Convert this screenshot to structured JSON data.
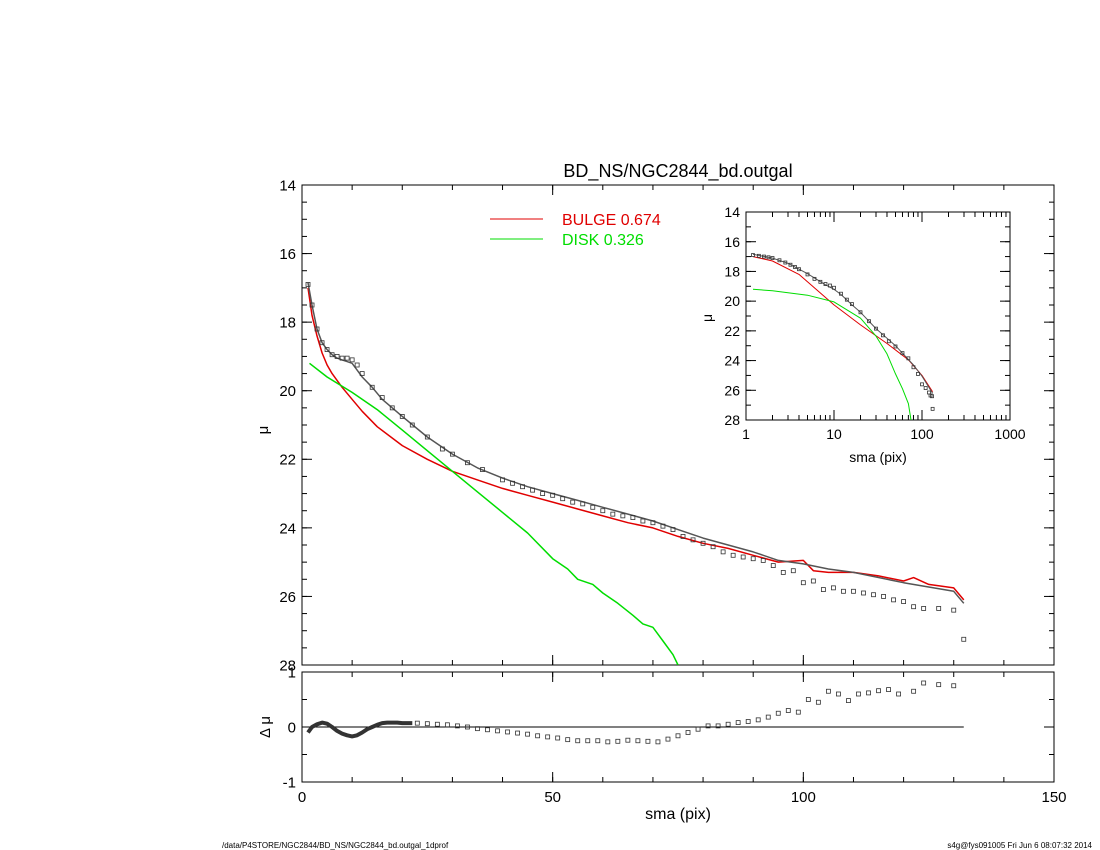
{
  "footer": {
    "left": "/data/P4STORE/NGC2844/BD_NS/NGC2844_bd.outgal_1dprof",
    "right": "s4g@fys091005  Fri Jun  6 08:07:32 2014"
  },
  "colors": {
    "bulge": "#e00000",
    "disk": "#00dd00",
    "model": "#555555",
    "data": "#333333",
    "axis": "#000000"
  },
  "chart_data": [
    {
      "type": "line",
      "panel": "main",
      "title": "BD_NS/NGC2844_bd.outgal",
      "xlabel": "",
      "ylabel": "μ",
      "xlim": [
        0,
        150
      ],
      "ylim": [
        28,
        14
      ],
      "x_ticks": [
        0,
        50,
        100,
        150
      ],
      "y_ticks": [
        14,
        16,
        18,
        20,
        22,
        24,
        26,
        28
      ],
      "y_tick_labels": [
        "14",
        "16",
        "18",
        "20",
        "22",
        "24",
        "26",
        "28"
      ],
      "legend_position": "top-center",
      "legend": [
        {
          "label": "BULGE",
          "value": "0.674",
          "color": "#e00000"
        },
        {
          "label": "DISK",
          "value": "0.326",
          "color": "#00dd00"
        }
      ],
      "series": [
        {
          "name": "BULGE",
          "color": "#e00000",
          "x": [
            1.2,
            2,
            3,
            4,
            5,
            6,
            8,
            10,
            12,
            15,
            20,
            25,
            30,
            35,
            40,
            45,
            50,
            55,
            60,
            65,
            70,
            75,
            80,
            85,
            90,
            95,
            100,
            102,
            105,
            110,
            115,
            120,
            122,
            125,
            130,
            132
          ],
          "y": [
            17.0,
            17.8,
            18.4,
            18.9,
            19.25,
            19.5,
            19.9,
            20.25,
            20.6,
            21.05,
            21.6,
            22.0,
            22.35,
            22.6,
            22.85,
            23.05,
            23.25,
            23.45,
            23.65,
            23.85,
            24.0,
            24.25,
            24.45,
            24.6,
            24.8,
            25.0,
            24.95,
            25.25,
            25.3,
            25.3,
            25.4,
            25.55,
            25.45,
            25.65,
            25.75,
            26.1
          ]
        },
        {
          "name": "DISK",
          "color": "#00dd00",
          "x": [
            1.5,
            5,
            10,
            15,
            20,
            25,
            30,
            35,
            40,
            45,
            50,
            53,
            55,
            58,
            60,
            63,
            66,
            68,
            70,
            72,
            74,
            75
          ],
          "y": [
            19.2,
            19.6,
            20.05,
            20.55,
            21.15,
            21.75,
            22.35,
            22.95,
            23.55,
            24.15,
            24.9,
            25.2,
            25.5,
            25.65,
            25.9,
            26.2,
            26.55,
            26.8,
            26.9,
            27.3,
            27.7,
            28.0
          ]
        },
        {
          "name": "",
          "color": "#555555",
          "x": [
            1.2,
            2,
            3,
            4,
            5,
            6,
            7,
            8,
            9,
            10,
            11,
            12,
            14,
            16,
            20,
            25,
            30,
            35,
            40,
            45,
            50,
            55,
            60,
            65,
            70,
            75,
            80,
            85,
            90,
            95,
            100,
            105,
            110,
            120,
            130,
            132
          ],
          "y": [
            16.85,
            17.5,
            18.2,
            18.6,
            18.8,
            18.95,
            19.05,
            19.1,
            19.15,
            19.2,
            19.4,
            19.6,
            19.9,
            20.25,
            20.75,
            21.35,
            21.85,
            22.25,
            22.55,
            22.8,
            23.0,
            23.2,
            23.4,
            23.6,
            23.8,
            24.05,
            24.3,
            24.5,
            24.7,
            24.95,
            25.05,
            25.2,
            25.3,
            25.6,
            25.85,
            26.2
          ]
        },
        {
          "name": "",
          "color": "#333333",
          "style": "square-markers",
          "x": [
            1.2,
            2,
            3,
            4,
            5,
            6,
            7,
            8,
            9,
            10,
            11,
            12,
            14,
            16,
            18,
            20,
            22,
            25,
            28,
            30,
            33,
            36,
            40,
            42,
            44,
            46,
            48,
            50,
            52,
            54,
            56,
            58,
            60,
            62,
            64,
            66,
            68,
            70,
            72,
            74,
            76,
            78,
            80,
            82,
            84,
            86,
            88,
            90,
            92,
            94,
            96,
            98,
            100,
            102,
            104,
            106,
            108,
            110,
            112,
            114,
            116,
            118,
            120,
            122,
            124,
            127,
            130,
            132
          ],
          "y": [
            16.9,
            17.5,
            18.2,
            18.6,
            18.8,
            18.95,
            19.0,
            19.05,
            19.05,
            19.1,
            19.25,
            19.5,
            19.9,
            20.2,
            20.5,
            20.75,
            21.0,
            21.35,
            21.7,
            21.85,
            22.1,
            22.3,
            22.6,
            22.7,
            22.8,
            22.9,
            23.0,
            23.05,
            23.15,
            23.25,
            23.3,
            23.4,
            23.5,
            23.6,
            23.65,
            23.7,
            23.8,
            23.85,
            23.95,
            24.05,
            24.25,
            24.35,
            24.45,
            24.55,
            24.7,
            24.8,
            24.85,
            24.9,
            24.95,
            25.1,
            25.3,
            25.25,
            25.6,
            25.55,
            25.8,
            25.75,
            25.85,
            25.85,
            25.9,
            25.95,
            26.0,
            26.1,
            26.15,
            26.3,
            26.35,
            26.35,
            26.4,
            27.25
          ]
        }
      ]
    },
    {
      "type": "scatter",
      "panel": "residual",
      "title": "",
      "xlabel": "sma (pix)",
      "ylabel": "Δ μ",
      "xlim": [
        0,
        150
      ],
      "ylim": [
        -1,
        1
      ],
      "x_ticks": [
        0,
        50,
        100,
        150
      ],
      "y_ticks": [
        -1,
        0,
        1
      ],
      "y_tick_labels": [
        "-1",
        "0",
        "1"
      ],
      "reference_line": {
        "y": 0,
        "x_range": [
          1.2,
          132
        ]
      },
      "series": [
        {
          "name": "",
          "color": "#333333",
          "style": "dense-line",
          "x": [
            1.2,
            2,
            3,
            4,
            5,
            6,
            7,
            8,
            9,
            10,
            11,
            12,
            13,
            14,
            15,
            16,
            17,
            18,
            19,
            20,
            21,
            22
          ],
          "y": [
            -0.1,
            0.0,
            0.05,
            0.08,
            0.06,
            0.0,
            -0.07,
            -0.12,
            -0.15,
            -0.17,
            -0.15,
            -0.1,
            -0.04,
            0.0,
            0.04,
            0.07,
            0.08,
            0.08,
            0.08,
            0.07,
            0.07,
            0.07
          ]
        },
        {
          "name": "",
          "color": "#333333",
          "style": "square-markers",
          "x": [
            23,
            25,
            27,
            29,
            31,
            33,
            35,
            37,
            39,
            41,
            43,
            45,
            47,
            49,
            51,
            53,
            55,
            57,
            59,
            61,
            63,
            65,
            67,
            69,
            71,
            73,
            75,
            77,
            79,
            81,
            83,
            85,
            87,
            89,
            91,
            93,
            95,
            97,
            99,
            101,
            103,
            105,
            107,
            109,
            111,
            113,
            115,
            117,
            119,
            122,
            124,
            127,
            130
          ],
          "y": [
            0.07,
            0.06,
            0.05,
            0.04,
            0.02,
            0.0,
            -0.03,
            -0.05,
            -0.07,
            -0.09,
            -0.11,
            -0.13,
            -0.16,
            -0.18,
            -0.2,
            -0.23,
            -0.25,
            -0.25,
            -0.25,
            -0.27,
            -0.26,
            -0.24,
            -0.25,
            -0.26,
            -0.27,
            -0.22,
            -0.16,
            -0.1,
            -0.04,
            0.02,
            0.02,
            0.05,
            0.08,
            0.1,
            0.13,
            0.18,
            0.25,
            0.3,
            0.27,
            0.5,
            0.45,
            0.65,
            0.6,
            0.48,
            0.6,
            0.62,
            0.66,
            0.68,
            0.6,
            0.65,
            0.8,
            0.77,
            0.75
          ]
        }
      ]
    },
    {
      "type": "line",
      "panel": "inset",
      "title": "",
      "xlabel": "sma (pix)",
      "ylabel": "μ",
      "x_scale": "log",
      "xlim": [
        1,
        1000
      ],
      "ylim": [
        28,
        14
      ],
      "x_ticks": [
        1,
        10,
        100,
        1000
      ],
      "x_tick_labels": [
        "1",
        "10",
        "100",
        "1000"
      ],
      "y_ticks": [
        14,
        16,
        18,
        20,
        22,
        24,
        26,
        28
      ],
      "y_tick_labels": [
        "14",
        "16",
        "18",
        "20",
        "22",
        "24",
        "26",
        "28"
      ],
      "series": [
        {
          "name": "",
          "color": "#e00000",
          "x": [
            1.2,
            2,
            4,
            10,
            20,
            40,
            70,
            100,
            132
          ],
          "y": [
            17.0,
            17.3,
            18.2,
            20.25,
            21.6,
            22.85,
            23.95,
            25.0,
            26.1
          ]
        },
        {
          "name": "",
          "color": "#00dd00",
          "x": [
            1.2,
            2,
            5,
            10,
            20,
            30,
            40,
            50,
            60,
            70,
            75
          ],
          "y": [
            19.2,
            19.3,
            19.6,
            20.05,
            21.15,
            22.35,
            23.55,
            24.9,
            25.9,
            26.9,
            28.0
          ]
        },
        {
          "name": "",
          "color": "#555555",
          "x": [
            1.2,
            2,
            3,
            5,
            8,
            10,
            12,
            16,
            20,
            30,
            50,
            80,
            100,
            132
          ],
          "y": [
            16.85,
            17.1,
            17.45,
            18.15,
            18.9,
            19.2,
            19.55,
            20.25,
            20.75,
            21.85,
            23.0,
            24.3,
            25.05,
            26.2
          ]
        },
        {
          "name": "",
          "color": "#333333",
          "style": "square-markers",
          "x": [
            1.2,
            1.4,
            1.6,
            1.8,
            2,
            2.4,
            2.8,
            3.2,
            3.6,
            4,
            5,
            6,
            7,
            8,
            9,
            10,
            12,
            14,
            16,
            20,
            25,
            30,
            36,
            42,
            50,
            60,
            70,
            80,
            90,
            100,
            110,
            120,
            125,
            130,
            132
          ],
          "y": [
            16.9,
            16.95,
            17.0,
            17.05,
            17.1,
            17.25,
            17.4,
            17.55,
            17.7,
            17.85,
            18.2,
            18.5,
            18.7,
            18.85,
            18.95,
            19.1,
            19.5,
            19.9,
            20.2,
            20.75,
            21.35,
            21.85,
            22.3,
            22.7,
            23.05,
            23.5,
            23.85,
            24.45,
            24.9,
            25.6,
            25.85,
            26.15,
            26.35,
            26.4,
            27.25
          ]
        }
      ]
    }
  ]
}
